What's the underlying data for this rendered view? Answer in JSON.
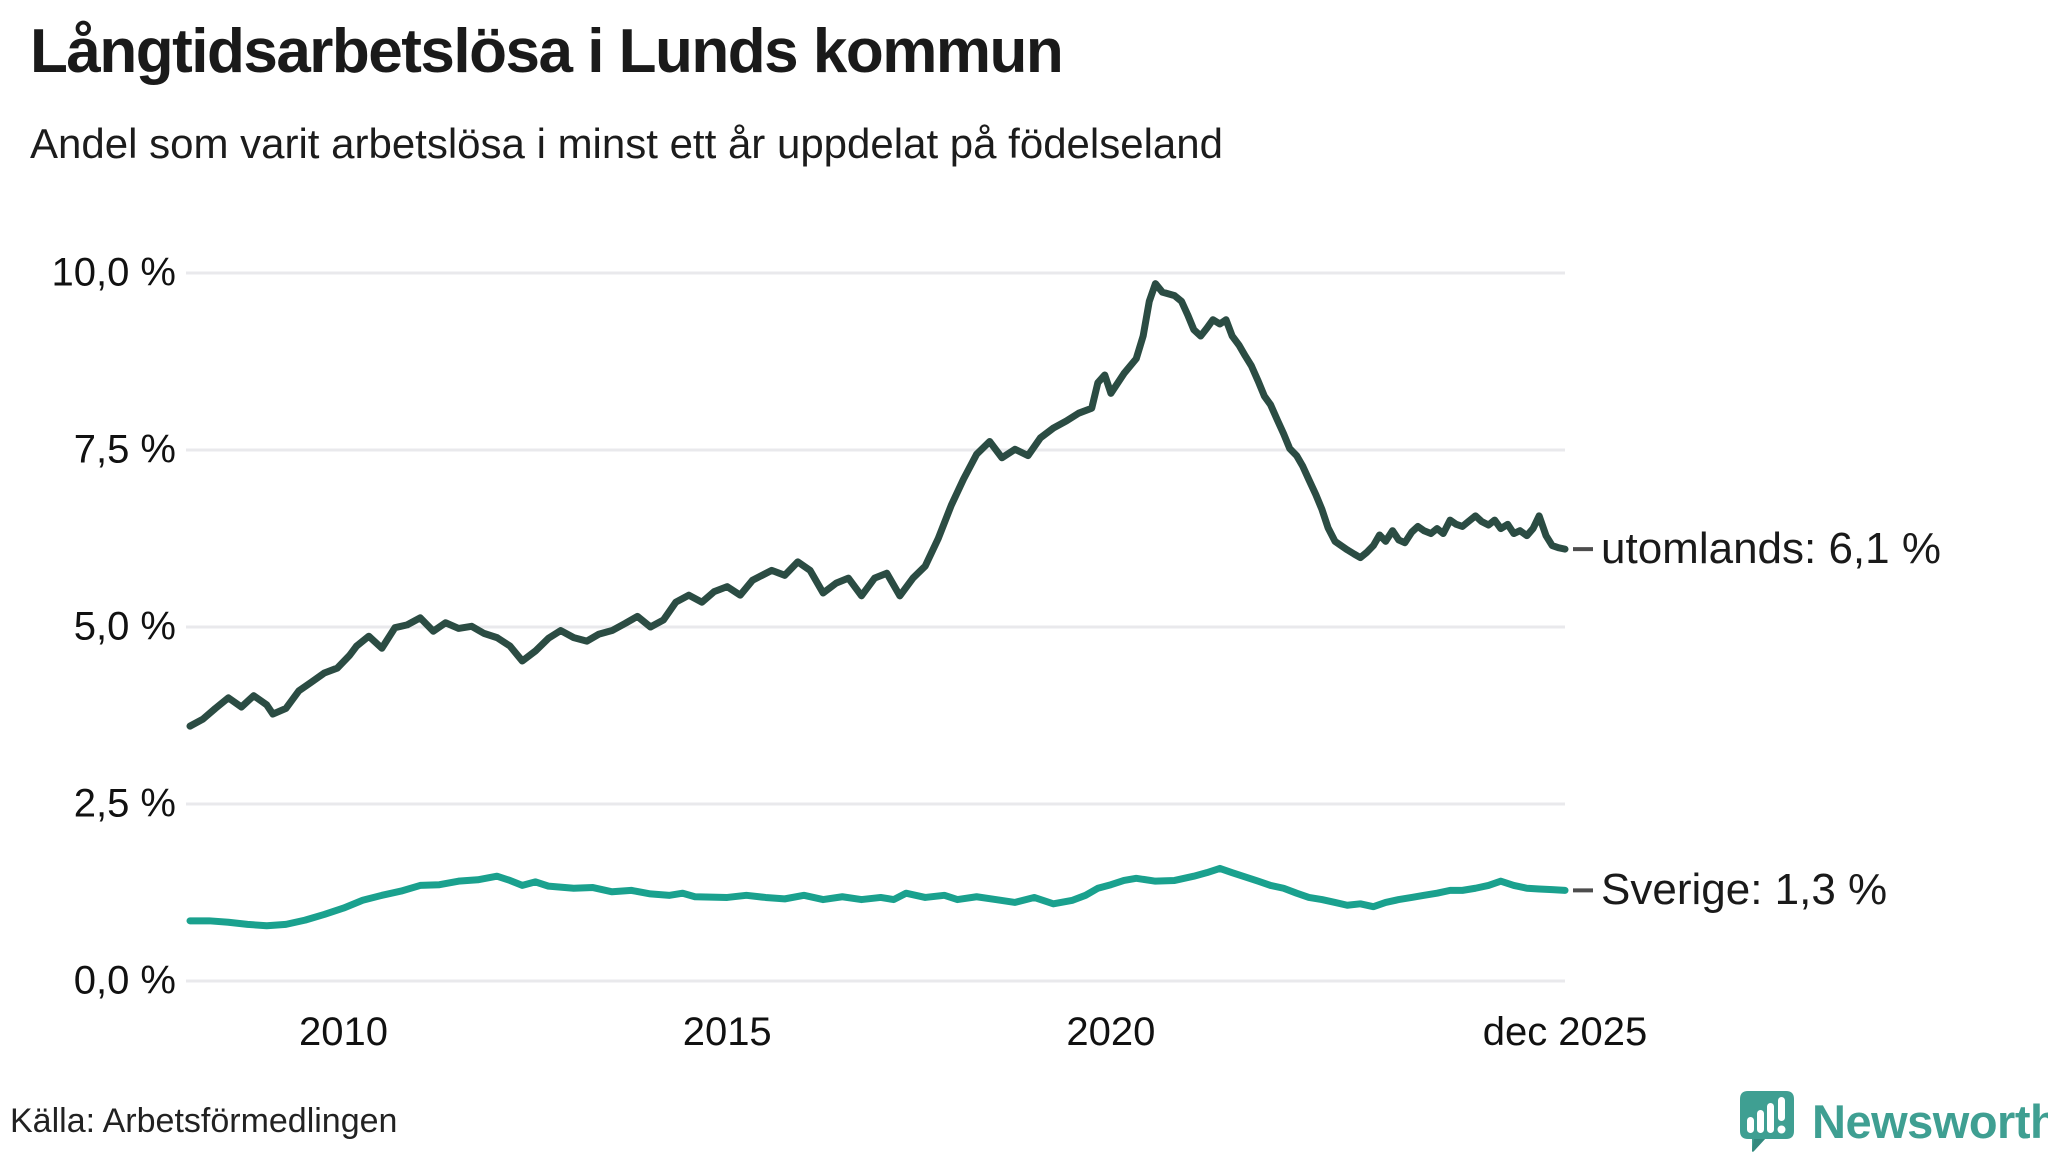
{
  "header": {
    "title": "Långtidsarbetslösa i Lunds kommun",
    "subtitle": "Andel som varit arbetslösa i minst ett år uppdelat på födelseland"
  },
  "source": {
    "label": "Källa: Arbetsförmedlingen"
  },
  "branding": {
    "wordmark": "Newsworthy",
    "logo_icon": "speech-bubble-bar-chart-icon",
    "color": "#3f9f92",
    "color_dark": "#33897e"
  },
  "colors": {
    "background": "#ffffff",
    "text": "#1a1a1a",
    "grid": "#e9e9ec",
    "end_label_dash": "#4d4d4d",
    "utomlands_line": "#2b4c43",
    "sverige_line": "#1aa18e"
  },
  "chart_data": {
    "type": "line",
    "title": "Långtidsarbetslösa i Lunds kommun",
    "subtitle": "Andel som varit arbetslösa i minst ett år uppdelat på födelseland",
    "unit": "%",
    "grid": true,
    "legend_position": "end-labels-right",
    "x_axis": {
      "domain": [
        2008.0,
        2025.917
      ],
      "ticks": [
        {
          "year": 2010,
          "label": "2010"
        },
        {
          "year": 2015,
          "label": "2015"
        },
        {
          "year": 2020,
          "label": "2020"
        },
        {
          "year": 2025.917,
          "label": "dec 2025"
        }
      ]
    },
    "y_axis": {
      "domain": [
        0,
        10
      ],
      "ticks": [
        {
          "value": 0,
          "label": "0,0 %"
        },
        {
          "value": 2.5,
          "label": "2,5 %"
        },
        {
          "value": 5,
          "label": "5,0 %"
        },
        {
          "value": 7.5,
          "label": "7,5 %"
        },
        {
          "value": 10,
          "label": "10,0 %"
        }
      ]
    },
    "series": [
      {
        "name": "utomlands",
        "color": "#2b4c43",
        "end_label": "utomlands: 6,1 %",
        "end_value": "6,1 %",
        "points": [
          [
            2008.0,
            3.6
          ],
          [
            2008.17,
            3.7
          ],
          [
            2008.33,
            3.85
          ],
          [
            2008.5,
            4.0
          ],
          [
            2008.67,
            3.87
          ],
          [
            2008.83,
            4.03
          ],
          [
            2009.0,
            3.9
          ],
          [
            2009.08,
            3.77
          ],
          [
            2009.25,
            3.85
          ],
          [
            2009.42,
            4.1
          ],
          [
            2009.58,
            4.22
          ],
          [
            2009.75,
            4.35
          ],
          [
            2009.92,
            4.42
          ],
          [
            2010.08,
            4.6
          ],
          [
            2010.17,
            4.73
          ],
          [
            2010.33,
            4.87
          ],
          [
            2010.5,
            4.7
          ],
          [
            2010.67,
            4.99
          ],
          [
            2010.83,
            5.03
          ],
          [
            2011.0,
            5.13
          ],
          [
            2011.17,
            4.94
          ],
          [
            2011.33,
            5.06
          ],
          [
            2011.5,
            4.98
          ],
          [
            2011.67,
            5.01
          ],
          [
            2011.83,
            4.91
          ],
          [
            2012.0,
            4.85
          ],
          [
            2012.17,
            4.73
          ],
          [
            2012.33,
            4.52
          ],
          [
            2012.5,
            4.66
          ],
          [
            2012.67,
            4.84
          ],
          [
            2012.83,
            4.95
          ],
          [
            2013.0,
            4.85
          ],
          [
            2013.17,
            4.8
          ],
          [
            2013.33,
            4.9
          ],
          [
            2013.5,
            4.95
          ],
          [
            2013.67,
            5.05
          ],
          [
            2013.83,
            5.15
          ],
          [
            2014.0,
            5.0
          ],
          [
            2014.17,
            5.1
          ],
          [
            2014.33,
            5.35
          ],
          [
            2014.5,
            5.45
          ],
          [
            2014.67,
            5.35
          ],
          [
            2014.83,
            5.5
          ],
          [
            2015.0,
            5.57
          ],
          [
            2015.17,
            5.45
          ],
          [
            2015.33,
            5.66
          ],
          [
            2015.58,
            5.8
          ],
          [
            2015.75,
            5.73
          ],
          [
            2015.92,
            5.92
          ],
          [
            2016.08,
            5.8
          ],
          [
            2016.25,
            5.48
          ],
          [
            2016.42,
            5.62
          ],
          [
            2016.58,
            5.69
          ],
          [
            2016.75,
            5.44
          ],
          [
            2016.92,
            5.69
          ],
          [
            2017.08,
            5.76
          ],
          [
            2017.25,
            5.44
          ],
          [
            2017.42,
            5.69
          ],
          [
            2017.58,
            5.86
          ],
          [
            2017.75,
            6.25
          ],
          [
            2017.92,
            6.72
          ],
          [
            2018.08,
            7.09
          ],
          [
            2018.25,
            7.44
          ],
          [
            2018.42,
            7.62
          ],
          [
            2018.58,
            7.39
          ],
          [
            2018.75,
            7.51
          ],
          [
            2018.92,
            7.42
          ],
          [
            2019.08,
            7.67
          ],
          [
            2019.25,
            7.81
          ],
          [
            2019.42,
            7.91
          ],
          [
            2019.58,
            8.02
          ],
          [
            2019.75,
            8.09
          ],
          [
            2019.83,
            8.45
          ],
          [
            2019.92,
            8.56
          ],
          [
            2020.0,
            8.3
          ],
          [
            2020.17,
            8.58
          ],
          [
            2020.33,
            8.79
          ],
          [
            2020.42,
            9.11
          ],
          [
            2020.5,
            9.6
          ],
          [
            2020.58,
            9.85
          ],
          [
            2020.67,
            9.73
          ],
          [
            2020.83,
            9.68
          ],
          [
            2020.92,
            9.6
          ],
          [
            2021.0,
            9.41
          ],
          [
            2021.08,
            9.2
          ],
          [
            2021.17,
            9.11
          ],
          [
            2021.25,
            9.22
          ],
          [
            2021.33,
            9.34
          ],
          [
            2021.42,
            9.28
          ],
          [
            2021.5,
            9.34
          ],
          [
            2021.58,
            9.11
          ],
          [
            2021.67,
            8.98
          ],
          [
            2021.75,
            8.83
          ],
          [
            2021.83,
            8.69
          ],
          [
            2021.92,
            8.47
          ],
          [
            2022.0,
            8.26
          ],
          [
            2022.08,
            8.14
          ],
          [
            2022.17,
            7.92
          ],
          [
            2022.25,
            7.73
          ],
          [
            2022.33,
            7.52
          ],
          [
            2022.42,
            7.42
          ],
          [
            2022.5,
            7.27
          ],
          [
            2022.58,
            7.08
          ],
          [
            2022.67,
            6.87
          ],
          [
            2022.75,
            6.66
          ],
          [
            2022.83,
            6.4
          ],
          [
            2022.92,
            6.21
          ],
          [
            2023.0,
            6.15
          ],
          [
            2023.08,
            6.09
          ],
          [
            2023.17,
            6.03
          ],
          [
            2023.25,
            5.98
          ],
          [
            2023.33,
            6.05
          ],
          [
            2023.42,
            6.15
          ],
          [
            2023.5,
            6.3
          ],
          [
            2023.58,
            6.21
          ],
          [
            2023.67,
            6.36
          ],
          [
            2023.75,
            6.23
          ],
          [
            2023.83,
            6.19
          ],
          [
            2023.92,
            6.34
          ],
          [
            2024.0,
            6.42
          ],
          [
            2024.08,
            6.36
          ],
          [
            2024.17,
            6.32
          ],
          [
            2024.25,
            6.39
          ],
          [
            2024.33,
            6.32
          ],
          [
            2024.42,
            6.51
          ],
          [
            2024.5,
            6.45
          ],
          [
            2024.58,
            6.42
          ],
          [
            2024.67,
            6.5
          ],
          [
            2024.75,
            6.57
          ],
          [
            2024.83,
            6.49
          ],
          [
            2024.92,
            6.44
          ],
          [
            2025.0,
            6.51
          ],
          [
            2025.08,
            6.39
          ],
          [
            2025.17,
            6.45
          ],
          [
            2025.25,
            6.32
          ],
          [
            2025.33,
            6.36
          ],
          [
            2025.42,
            6.29
          ],
          [
            2025.5,
            6.39
          ],
          [
            2025.58,
            6.57
          ],
          [
            2025.67,
            6.29
          ],
          [
            2025.75,
            6.15
          ],
          [
            2025.83,
            6.12
          ],
          [
            2025.917,
            6.1
          ]
        ]
      },
      {
        "name": "Sverige",
        "color": "#1aa18e",
        "end_label": "Sverige: 1,3 %",
        "end_value": "1,3 %",
        "points": [
          [
            2008.0,
            0.85
          ],
          [
            2008.25,
            0.85
          ],
          [
            2008.5,
            0.83
          ],
          [
            2008.75,
            0.8
          ],
          [
            2009.0,
            0.78
          ],
          [
            2009.25,
            0.8
          ],
          [
            2009.5,
            0.86
          ],
          [
            2009.75,
            0.94
          ],
          [
            2010.0,
            1.03
          ],
          [
            2010.25,
            1.14
          ],
          [
            2010.5,
            1.21
          ],
          [
            2010.75,
            1.27
          ],
          [
            2011.0,
            1.35
          ],
          [
            2011.25,
            1.36
          ],
          [
            2011.5,
            1.41
          ],
          [
            2011.75,
            1.43
          ],
          [
            2012.0,
            1.48
          ],
          [
            2012.17,
            1.42
          ],
          [
            2012.33,
            1.35
          ],
          [
            2012.5,
            1.4
          ],
          [
            2012.67,
            1.34
          ],
          [
            2013.0,
            1.31
          ],
          [
            2013.25,
            1.32
          ],
          [
            2013.5,
            1.26
          ],
          [
            2013.75,
            1.28
          ],
          [
            2014.0,
            1.23
          ],
          [
            2014.25,
            1.21
          ],
          [
            2014.42,
            1.24
          ],
          [
            2014.58,
            1.19
          ],
          [
            2015.0,
            1.18
          ],
          [
            2015.25,
            1.21
          ],
          [
            2015.5,
            1.18
          ],
          [
            2015.75,
            1.16
          ],
          [
            2016.0,
            1.21
          ],
          [
            2016.25,
            1.15
          ],
          [
            2016.5,
            1.19
          ],
          [
            2016.75,
            1.15
          ],
          [
            2017.0,
            1.18
          ],
          [
            2017.17,
            1.15
          ],
          [
            2017.33,
            1.24
          ],
          [
            2017.58,
            1.18
          ],
          [
            2017.83,
            1.21
          ],
          [
            2018.0,
            1.15
          ],
          [
            2018.25,
            1.19
          ],
          [
            2018.5,
            1.15
          ],
          [
            2018.75,
            1.11
          ],
          [
            2019.0,
            1.18
          ],
          [
            2019.25,
            1.09
          ],
          [
            2019.5,
            1.14
          ],
          [
            2019.67,
            1.21
          ],
          [
            2019.83,
            1.31
          ],
          [
            2020.0,
            1.36
          ],
          [
            2020.17,
            1.42
          ],
          [
            2020.33,
            1.45
          ],
          [
            2020.58,
            1.41
          ],
          [
            2020.83,
            1.42
          ],
          [
            2021.08,
            1.48
          ],
          [
            2021.25,
            1.53
          ],
          [
            2021.42,
            1.59
          ],
          [
            2021.58,
            1.53
          ],
          [
            2021.75,
            1.47
          ],
          [
            2021.92,
            1.41
          ],
          [
            2022.08,
            1.35
          ],
          [
            2022.25,
            1.31
          ],
          [
            2022.42,
            1.24
          ],
          [
            2022.58,
            1.18
          ],
          [
            2022.75,
            1.15
          ],
          [
            2022.92,
            1.11
          ],
          [
            2023.08,
            1.07
          ],
          [
            2023.25,
            1.09
          ],
          [
            2023.42,
            1.05
          ],
          [
            2023.58,
            1.11
          ],
          [
            2023.75,
            1.15
          ],
          [
            2023.92,
            1.18
          ],
          [
            2024.08,
            1.21
          ],
          [
            2024.25,
            1.24
          ],
          [
            2024.42,
            1.28
          ],
          [
            2024.58,
            1.28
          ],
          [
            2024.75,
            1.31
          ],
          [
            2024.92,
            1.35
          ],
          [
            2025.08,
            1.41
          ],
          [
            2025.25,
            1.35
          ],
          [
            2025.42,
            1.31
          ],
          [
            2025.58,
            1.3
          ],
          [
            2025.75,
            1.29
          ],
          [
            2025.917,
            1.28
          ]
        ]
      }
    ]
  }
}
